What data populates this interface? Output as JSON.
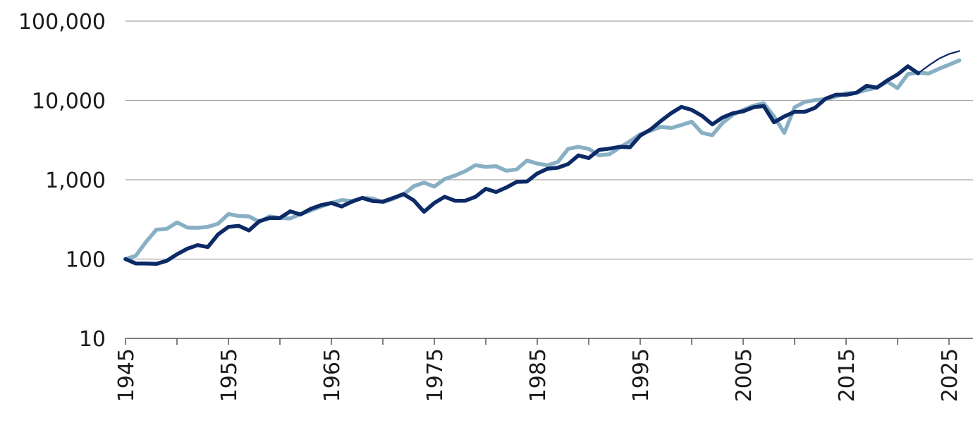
{
  "chart_data": {
    "type": "line",
    "title": "",
    "xlabel": "",
    "ylabel": "",
    "y_scale": "log",
    "ylim": [
      10,
      100000
    ],
    "xlim": [
      1945,
      2027
    ],
    "grid": "horizontal",
    "legend": "none",
    "x_ticks": [
      {
        "value": 1945,
        "label": "1945"
      },
      {
        "value": 1955,
        "label": "1955"
      },
      {
        "value": 1965,
        "label": "1965"
      },
      {
        "value": 1975,
        "label": "1975"
      },
      {
        "value": 1985,
        "label": "1985"
      },
      {
        "value": 1995,
        "label": "1995"
      },
      {
        "value": 2005,
        "label": "2005"
      },
      {
        "value": 2015,
        "label": "2015"
      },
      {
        "value": 2025,
        "label": "2025"
      }
    ],
    "y_ticks": [
      {
        "value": 10,
        "label": "10"
      },
      {
        "value": 100,
        "label": "100"
      },
      {
        "value": 1000,
        "label": "1,000"
      },
      {
        "value": 10000,
        "label": "10,000"
      },
      {
        "value": 100000,
        "label": "100,000"
      }
    ],
    "series": [
      {
        "color": "#0b2a66",
        "x": [
          1945,
          1946,
          1947,
          1948,
          1949,
          1950,
          1951,
          1952,
          1953,
          1954,
          1955,
          1956,
          1957,
          1958,
          1959,
          1960,
          1961,
          1962,
          1963,
          1964,
          1965,
          1966,
          1967,
          1968,
          1969,
          1970,
          1971,
          1972,
          1973,
          1974,
          1975,
          1976,
          1977,
          1978,
          1979,
          1980,
          1981,
          1982,
          1983,
          1984,
          1985,
          1986,
          1987,
          1988,
          1989,
          1990,
          1991,
          1992,
          1993,
          1994,
          1995,
          1996,
          1997,
          1998,
          1999,
          2000,
          2001,
          2002,
          2003,
          2004,
          2005,
          2006,
          2007,
          2008,
          2009,
          2010,
          2011,
          2012,
          2013,
          2014,
          2015,
          2016,
          2017,
          2018,
          2019,
          2020,
          2021,
          2022
        ],
        "values": [
          100,
          88,
          88,
          87,
          95,
          115,
          135,
          150,
          142,
          205,
          255,
          262,
          230,
          300,
          330,
          330,
          400,
          365,
          430,
          480,
          510,
          460,
          530,
          590,
          540,
          530,
          590,
          660,
          550,
          395,
          510,
          610,
          545,
          545,
          610,
          770,
          700,
          800,
          940,
          950,
          1200,
          1380,
          1420,
          1580,
          2030,
          1880,
          2380,
          2470,
          2600,
          2570,
          3600,
          4300,
          5500,
          6900,
          8300,
          7600,
          6400,
          5000,
          6100,
          6900,
          7300,
          8200,
          8500,
          5300,
          6300,
          7200,
          7200,
          8100,
          10500,
          11800,
          11800,
          12500,
          15300,
          14500,
          17900,
          21300,
          27000,
          22000
        ],
        "extension": {
          "x": [
            2022,
            2023,
            2024,
            2025,
            2026
          ],
          "values": [
            22000,
            27500,
            33500,
            38500,
            42000
          ]
        }
      },
      {
        "color": "#88afc4",
        "x": [
          1945,
          1946,
          1947,
          1948,
          1949,
          1950,
          1951,
          1952,
          1953,
          1954,
          1955,
          1956,
          1957,
          1958,
          1959,
          1960,
          1961,
          1962,
          1963,
          1964,
          1965,
          1966,
          1967,
          1968,
          1969,
          1970,
          1971,
          1972,
          1973,
          1974,
          1975,
          1976,
          1977,
          1978,
          1979,
          1980,
          1981,
          1982,
          1983,
          1984,
          1985,
          1986,
          1987,
          1988,
          1989,
          1990,
          1991,
          1992,
          1993,
          1994,
          1995,
          1996,
          1997,
          1998,
          1999,
          2000,
          2001,
          2002,
          2003,
          2004,
          2005,
          2006,
          2007,
          2008,
          2009,
          2010,
          2011,
          2012,
          2013,
          2014,
          2015,
          2016,
          2017,
          2018,
          2019,
          2020,
          2021,
          2022,
          2023,
          2024,
          2025,
          2026
        ],
        "values": [
          100,
          110,
          165,
          235,
          240,
          290,
          250,
          248,
          255,
          280,
          370,
          350,
          345,
          295,
          345,
          330,
          325,
          370,
          410,
          460,
          510,
          555,
          540,
          590,
          580,
          520,
          575,
          650,
          830,
          920,
          820,
          1020,
          1130,
          1280,
          1530,
          1450,
          1480,
          1300,
          1350,
          1750,
          1600,
          1520,
          1680,
          2450,
          2600,
          2450,
          2030,
          2100,
          2550,
          3050,
          3750,
          4150,
          4650,
          4500,
          4900,
          5400,
          3900,
          3650,
          5200,
          6600,
          7600,
          8600,
          9200,
          6300,
          3900,
          8200,
          9600,
          10100,
          10400,
          11200,
          12300,
          12500,
          13600,
          14500,
          17300,
          14300,
          21500,
          22500,
          21800,
          25000,
          28200,
          32000
        ]
      }
    ]
  }
}
